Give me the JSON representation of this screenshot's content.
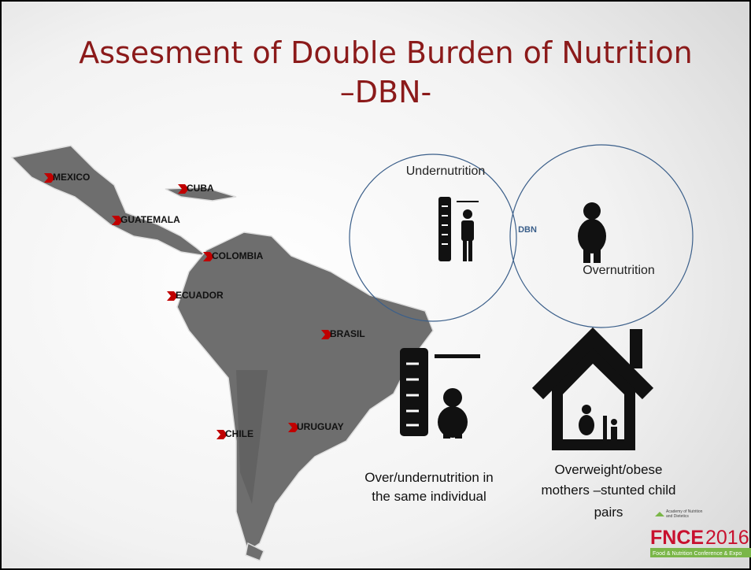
{
  "title": {
    "lines": [
      "Assesment of Double Burden  of Nutrition",
      "–DBN-"
    ]
  },
  "countries": [
    "MEXICO",
    "CUBA",
    "GUATEMALA",
    "COLOMBIA",
    "ECUADOR",
    "BRASIL",
    "CHILE",
    "URUGUAY"
  ],
  "venn": {
    "left": "Undernutrition",
    "center": "DBN",
    "right": "Overnutrition"
  },
  "captions": {
    "individual": [
      "Over/undernutrition in",
      "the same individual"
    ],
    "pairs": [
      "Overweight/obese",
      "mothers –stunted child",
      "pairs"
    ]
  },
  "logo": {
    "small": [
      "Academy of Nutrition",
      "and Dietetics"
    ],
    "brand": "FNCE",
    "year": "2016",
    "tagline": "Food & Nutrition Conference & Expo"
  }
}
